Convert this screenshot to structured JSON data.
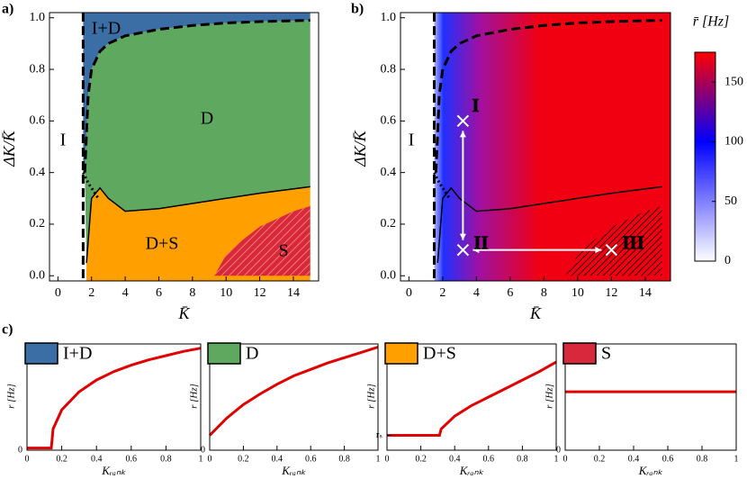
{
  "chart_data": [
    {
      "type": "region-map",
      "panel_label": "a)",
      "x_label": "K̄",
      "y_label": "ΔK/K̄",
      "xlim": [
        -0.5,
        15.5
      ],
      "ylim": [
        -0.02,
        1.02
      ],
      "xticks": [
        0,
        2,
        4,
        6,
        8,
        10,
        12,
        14
      ],
      "yticks": [
        {
          "value": 0,
          "label": "0.0"
        },
        0.2,
        0.4,
        0.6,
        0.8,
        {
          "value": 1,
          "label": "1.0"
        }
      ],
      "boundary_x": 1.5,
      "upper_boundary": {
        "x": [
          1.6,
          1.8,
          2,
          2.5,
          3,
          4,
          6,
          8,
          10,
          12,
          15
        ],
        "y": [
          0.4,
          0.7,
          0.8,
          0.87,
          0.9,
          0.93,
          0.955,
          0.97,
          0.98,
          0.985,
          0.99
        ]
      },
      "dotted_boundary": {
        "x": [
          1.5,
          1.8,
          2.1,
          2.4
        ],
        "y": [
          0.4,
          0.36,
          0.33,
          0.3
        ]
      },
      "lower_boundary": {
        "x": [
          1.7,
          2,
          2.5,
          3,
          4,
          6,
          8,
          10,
          12,
          15
        ],
        "y": [
          0.05,
          0.3,
          0.34,
          0.3,
          0.25,
          0.26,
          0.28,
          0.3,
          0.32,
          0.345
        ]
      },
      "s_boundary": {
        "x": [
          9.3,
          10,
          11,
          12,
          13,
          14,
          15
        ],
        "y": [
          0,
          0.08,
          0.14,
          0.19,
          0.22,
          0.25,
          0.27
        ]
      },
      "regions": [
        {
          "label": "I",
          "color": "#ffffff"
        },
        {
          "label": "I+D",
          "color": "#3b6ea5"
        },
        {
          "label": "D",
          "color": "#5fa860"
        },
        {
          "label": "D+S",
          "color": "#ffa000"
        },
        {
          "label": "S",
          "color": "#d8283c"
        }
      ]
    },
    {
      "type": "heatmap",
      "panel_label": "b)",
      "x_label": "K̄",
      "y_label": "ΔK/K̄",
      "xlim": [
        -0.5,
        15.5
      ],
      "ylim": [
        -0.02,
        1.02
      ],
      "xticks": [
        0,
        2,
        4,
        6,
        8,
        10,
        12,
        14
      ],
      "yticks": [
        {
          "value": 0,
          "label": "0.0"
        },
        0.2,
        0.4,
        0.6,
        0.8,
        {
          "value": 1,
          "label": "1.0"
        }
      ],
      "region_label": "I",
      "points": {
        "labels": [
          "I",
          "II",
          "III"
        ],
        "x": [
          3.2,
          3.2,
          12
        ],
        "y": [
          0.6,
          0.1,
          0.1
        ]
      },
      "colorbar": {
        "label": "r̄ [Hz]",
        "ylim": [
          0,
          175
        ],
        "yticks": [
          0,
          50,
          100,
          150
        ],
        "color_stops": [
          {
            "value": 0,
            "color": "#ffffff"
          },
          {
            "value": 100,
            "color": "#0000ff"
          },
          {
            "value": 175,
            "color": "#ff0000"
          }
        ]
      }
    },
    {
      "type": "line",
      "panel_label": "c)",
      "title": "I+D",
      "color": "#3b6ea5",
      "line_color": "#e00000",
      "x_label": "Kᵣₐₙₖ",
      "y_label": "r [Hz]",
      "xlim": [
        0,
        1
      ],
      "ylim": [
        0,
        1
      ],
      "xticks": [
        0,
        0.2,
        0.4,
        0.6,
        0.8,
        1
      ],
      "yticks": [
        0
      ],
      "x": [
        0,
        0.14,
        0.15,
        0.2,
        0.3,
        0.4,
        0.5,
        0.6,
        0.7,
        0.8,
        0.9,
        1
      ],
      "values": [
        0.02,
        0.02,
        0.2,
        0.38,
        0.55,
        0.66,
        0.74,
        0.8,
        0.85,
        0.89,
        0.93,
        0.96
      ]
    },
    {
      "type": "line",
      "title": "D",
      "color": "#5fa860",
      "line_color": "#e00000",
      "x_label": "Kᵣₐₙₖ",
      "y_label": "r [Hz]",
      "xlim": [
        0,
        1
      ],
      "ylim": [
        0,
        1
      ],
      "xticks": [
        0,
        0.2,
        0.4,
        0.6,
        0.8,
        1
      ],
      "yticks": [
        0
      ],
      "x": [
        0,
        0.1,
        0.2,
        0.3,
        0.4,
        0.5,
        0.6,
        0.7,
        0.8,
        0.9,
        1
      ],
      "values": [
        0.14,
        0.3,
        0.43,
        0.53,
        0.62,
        0.7,
        0.76,
        0.82,
        0.87,
        0.92,
        0.97
      ]
    },
    {
      "type": "line",
      "title": "D+S",
      "color": "#ffa000",
      "line_color": "#e00000",
      "x_label": "Kᵣₐₙₖ",
      "y_label": "r [Hz]",
      "xlim": [
        0,
        1
      ],
      "ylim": [
        0,
        1
      ],
      "xticks": [
        0,
        0.2,
        0.4,
        0.6,
        0.8,
        1
      ],
      "yticks": [
        {
          "value": 0.14,
          "label": "rₛ"
        }
      ],
      "x": [
        0,
        0.31,
        0.32,
        0.4,
        0.5,
        0.6,
        0.7,
        0.8,
        0.9,
        1
      ],
      "values": [
        0.14,
        0.14,
        0.2,
        0.32,
        0.42,
        0.5,
        0.58,
        0.66,
        0.74,
        0.83
      ]
    },
    {
      "type": "line",
      "title": "S",
      "color": "#d8283c",
      "line_color": "#e00000",
      "x_label": "Kᵣₐₙₖ",
      "y_label": "r [Hz]",
      "xlim": [
        0,
        1
      ],
      "ylim": [
        0,
        1
      ],
      "xticks": [
        0,
        0.2,
        0.4,
        0.6,
        0.8,
        1
      ],
      "yticks": [
        0
      ],
      "x": [
        0,
        1
      ],
      "values": [
        0.55,
        0.55
      ]
    }
  ]
}
